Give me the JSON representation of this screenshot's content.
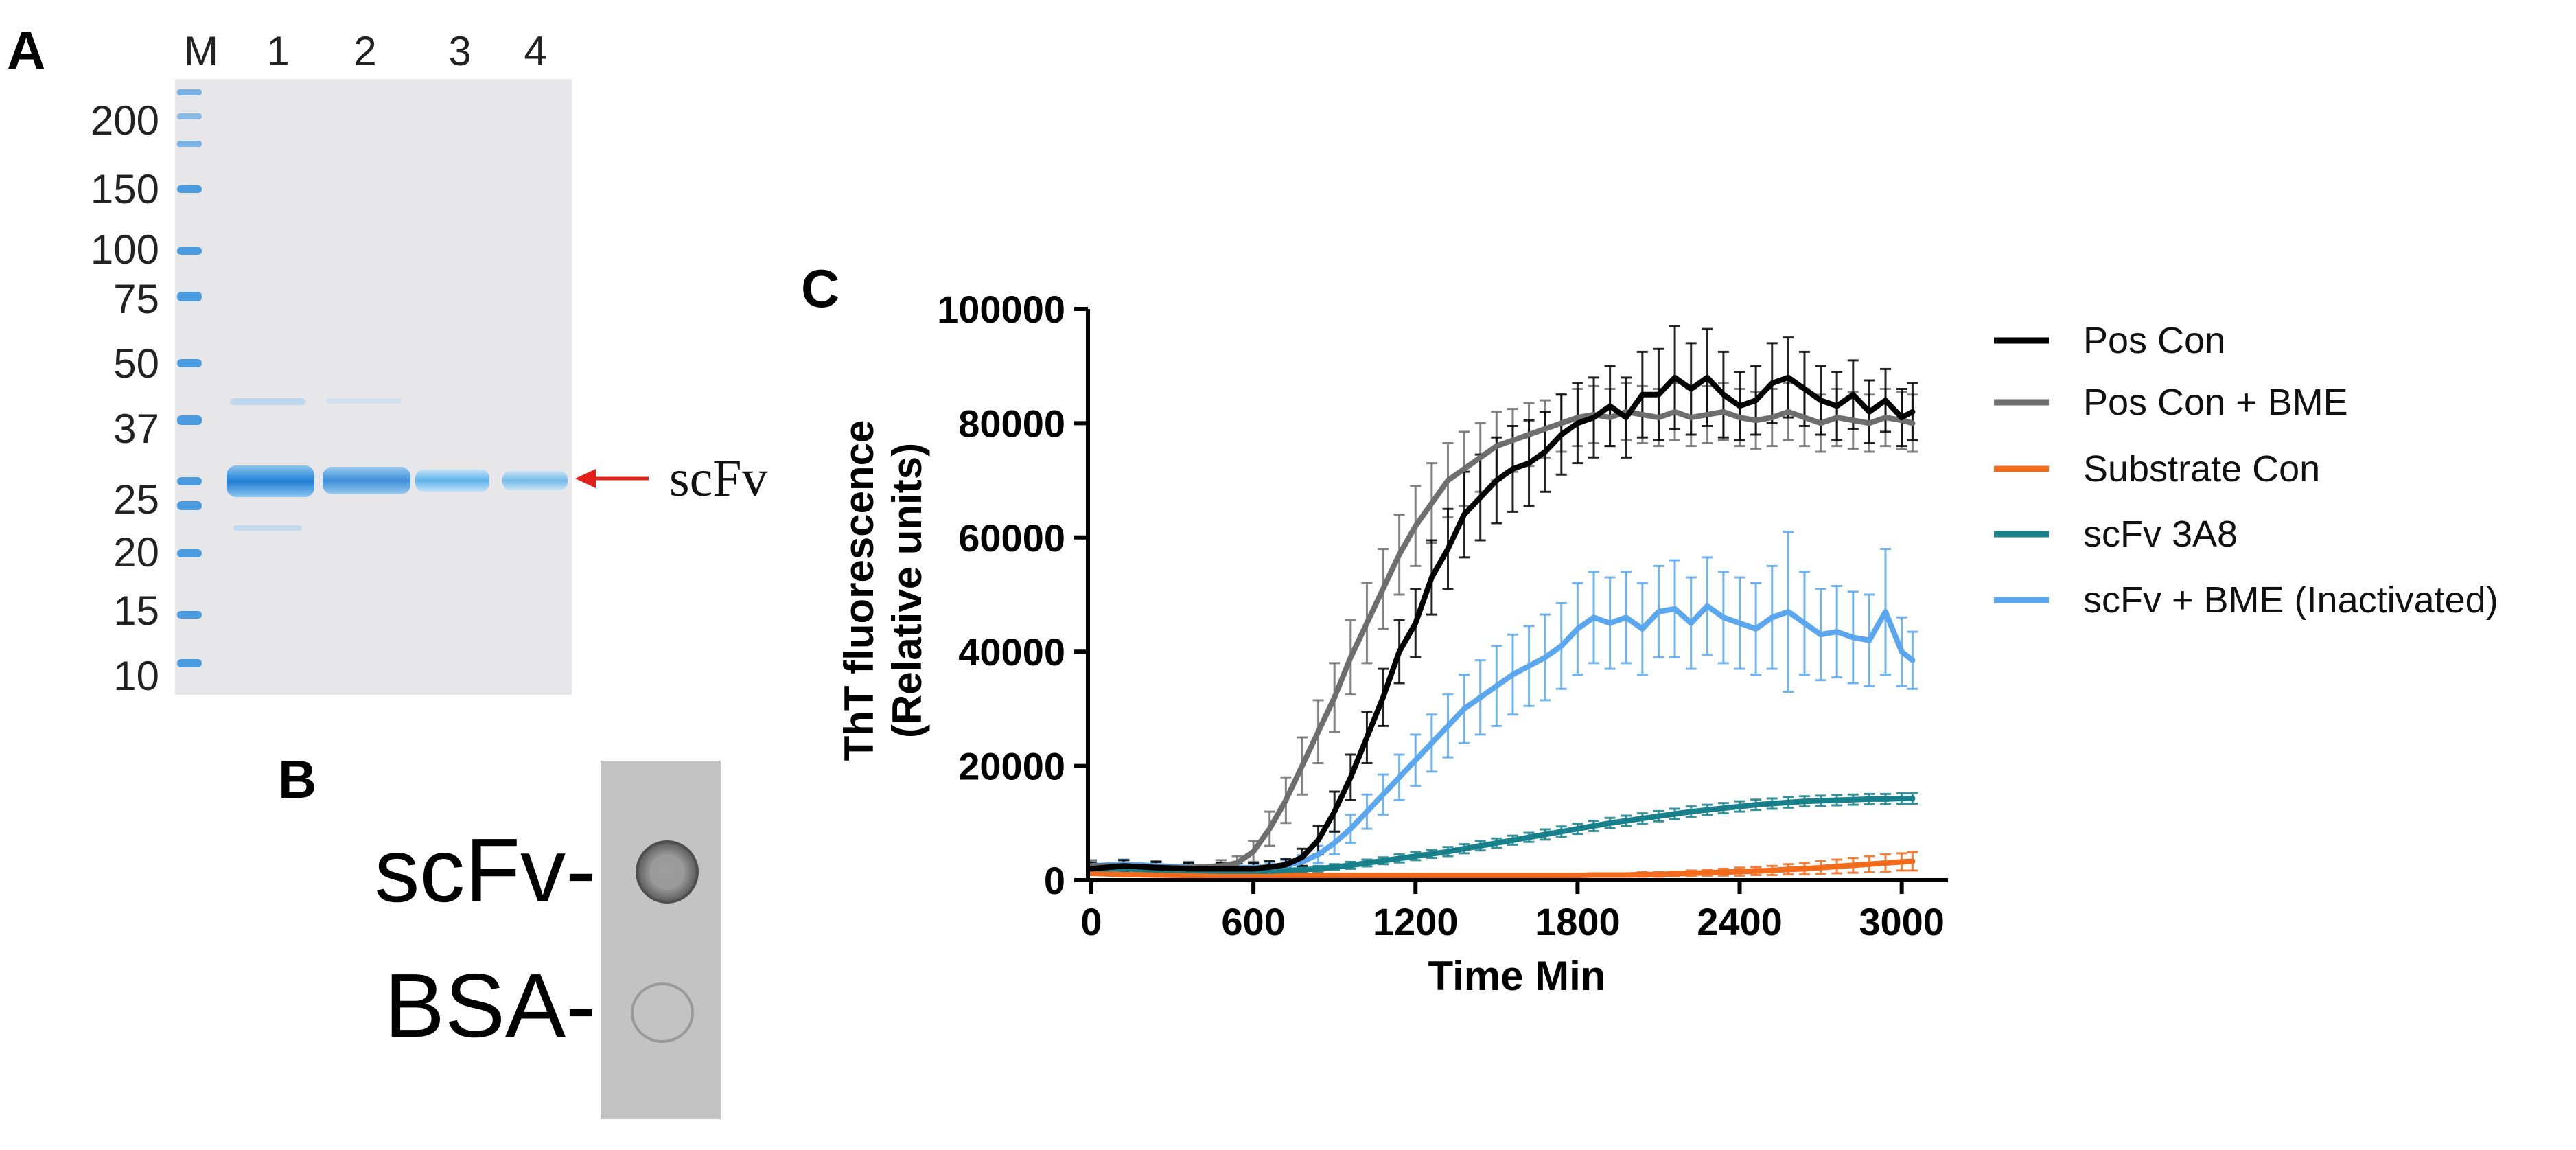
{
  "panel_a": {
    "label": "A",
    "lane_labels": [
      "M",
      "1",
      "2",
      "3",
      "4"
    ],
    "marker_kda": [
      "200",
      "150",
      "100",
      "75",
      "50",
      "37",
      "25",
      "20",
      "15",
      "10"
    ],
    "band_label": "scFv",
    "colors": {
      "band": "#1f7fd6",
      "marker": "#4a9be0",
      "gel": "#e7e7ea",
      "arrow": "#e4201c"
    }
  },
  "panel_b": {
    "label": "B",
    "spots": [
      "scFv-",
      "BSA-"
    ]
  },
  "panel_c": {
    "label": "C"
  },
  "chart_data": {
    "type": "line",
    "title": "",
    "xlabel": "Time Min",
    "ylabel": "ThT fluorescence (Relative units)",
    "ylabel_lines": [
      "ThT fluorescence",
      "(Relative units)"
    ],
    "xlim": [
      0,
      3100
    ],
    "ylim": [
      0,
      100000
    ],
    "xticks": [
      0,
      600,
      1200,
      1800,
      2400,
      3000
    ],
    "yticks": [
      0,
      20000,
      40000,
      60000,
      80000,
      100000
    ],
    "xtick_labels": [
      "0",
      "600",
      "1200",
      "1800",
      "2400",
      "3000"
    ],
    "ytick_labels": [
      "0",
      "20000",
      "40000",
      "60000",
      "80000",
      "100000"
    ],
    "legend_position": "top-right",
    "x": [
      0,
      120,
      240,
      360,
      480,
      540,
      600,
      660,
      720,
      780,
      840,
      900,
      960,
      1020,
      1080,
      1140,
      1200,
      1260,
      1320,
      1380,
      1440,
      1500,
      1560,
      1620,
      1680,
      1740,
      1800,
      1860,
      1920,
      1980,
      2040,
      2100,
      2160,
      2220,
      2280,
      2340,
      2400,
      2460,
      2520,
      2580,
      2640,
      2700,
      2760,
      2820,
      2880,
      2940,
      3000,
      3040
    ],
    "series": [
      {
        "name": "Pos Con",
        "color": "#000000",
        "values": [
          2000,
          2500,
          2200,
          2000,
          2000,
          2000,
          2000,
          2300,
          2700,
          4000,
          7000,
          12000,
          18000,
          25000,
          32000,
          40000,
          45000,
          53000,
          58000,
          64000,
          67000,
          70000,
          72000,
          73000,
          75000,
          78000,
          80000,
          81000,
          83000,
          81000,
          85000,
          85000,
          88000,
          86000,
          88000,
          85000,
          83000,
          84000,
          87000,
          88000,
          86000,
          84000,
          83000,
          85000,
          82000,
          84000,
          81000,
          82000
        ],
        "error": [
          1000,
          1000,
          1000,
          1000,
          1000,
          1000,
          1000,
          1000,
          1000,
          1500,
          2500,
          3500,
          4000,
          4500,
          5000,
          5500,
          6000,
          6500,
          7000,
          7500,
          7500,
          7500,
          7500,
          7500,
          7000,
          7000,
          7000,
          7000,
          7000,
          7000,
          7500,
          8000,
          9000,
          8000,
          8500,
          7500,
          6000,
          6000,
          7000,
          7000,
          6500,
          6000,
          6000,
          6000,
          5500,
          5500,
          5000,
          5000
        ]
      },
      {
        "name": "Pos Con + BME",
        "color": "#6e6e6e",
        "values": [
          2500,
          2500,
          2300,
          2200,
          2500,
          3000,
          5000,
          9000,
          14000,
          20000,
          26000,
          32000,
          39000,
          45000,
          51000,
          57000,
          62000,
          66000,
          70000,
          72000,
          74000,
          76000,
          77000,
          78000,
          79000,
          80000,
          81000,
          81500,
          81000,
          82000,
          81500,
          81000,
          82000,
          81000,
          81500,
          82000,
          81000,
          80500,
          81000,
          82000,
          81000,
          80000,
          81000,
          80500,
          80000,
          81000,
          80500,
          80000
        ],
        "error": [
          1000,
          1000,
          1000,
          1000,
          1000,
          1200,
          1800,
          3000,
          4000,
          5000,
          5500,
          6000,
          6500,
          7000,
          7000,
          7000,
          7000,
          7000,
          6500,
          6500,
          6000,
          6000,
          5500,
          5500,
          5000,
          5000,
          5000,
          5000,
          5000,
          5000,
          5000,
          5000,
          5000,
          5000,
          5000,
          5000,
          5000,
          5000,
          5000,
          5000,
          5000,
          5000,
          5000,
          5000,
          5000,
          5000,
          5000,
          5000
        ]
      },
      {
        "name": "Substrate Con",
        "color": "#f26b1d",
        "values": [
          1200,
          1000,
          900,
          800,
          800,
          800,
          800,
          800,
          800,
          800,
          800,
          800,
          800,
          800,
          800,
          800,
          800,
          800,
          800,
          800,
          800,
          800,
          800,
          800,
          800,
          800,
          800,
          900,
          900,
          900,
          1000,
          1000,
          1100,
          1200,
          1300,
          1400,
          1500,
          1600,
          1700,
          1900,
          2000,
          2200,
          2400,
          2600,
          2800,
          3000,
          3200,
          3300
        ],
        "error": [
          300,
          300,
          300,
          300,
          300,
          300,
          300,
          300,
          300,
          300,
          300,
          300,
          300,
          300,
          300,
          300,
          300,
          300,
          300,
          300,
          300,
          300,
          300,
          300,
          300,
          300,
          300,
          300,
          300,
          300,
          400,
          400,
          400,
          500,
          500,
          600,
          700,
          700,
          800,
          900,
          1000,
          1100,
          1200,
          1300,
          1400,
          1500,
          1500,
          1600
        ]
      },
      {
        "name": "scFv 3A8",
        "color": "#17808a",
        "values": [
          2000,
          2000,
          1800,
          1700,
          1600,
          1600,
          1600,
          1600,
          1700,
          1800,
          2000,
          2300,
          2600,
          3000,
          3400,
          3800,
          4200,
          4600,
          5000,
          5500,
          6000,
          6500,
          7000,
          7500,
          8000,
          8500,
          9000,
          9500,
          10000,
          10400,
          10800,
          11200,
          11600,
          12000,
          12300,
          12600,
          12900,
          13200,
          13400,
          13600,
          13800,
          13900,
          14000,
          14100,
          14200,
          14200,
          14300,
          14300
        ],
        "error": [
          800,
          600,
          500,
          500,
          500,
          500,
          500,
          500,
          500,
          500,
          500,
          500,
          600,
          600,
          600,
          700,
          700,
          700,
          800,
          800,
          800,
          800,
          800,
          800,
          900,
          900,
          900,
          900,
          900,
          900,
          900,
          900,
          900,
          900,
          900,
          900,
          900,
          900,
          900,
          900,
          900,
          900,
          900,
          900,
          900,
          900,
          900,
          900
        ]
      },
      {
        "name": "scFv + BME (Inactivated)",
        "color": "#5aa6ef",
        "values": [
          2500,
          2800,
          2500,
          2300,
          2200,
          2200,
          2200,
          2300,
          2600,
          3200,
          4500,
          6500,
          9000,
          12000,
          15000,
          18000,
          21000,
          24000,
          27000,
          30000,
          32000,
          34000,
          36000,
          37500,
          39000,
          41000,
          44000,
          46000,
          45000,
          46000,
          44000,
          47000,
          47500,
          45000,
          48000,
          46000,
          45000,
          44000,
          46000,
          47000,
          45000,
          43000,
          43500,
          42500,
          42000,
          47000,
          40000,
          38500
        ],
        "error": [
          800,
          800,
          700,
          700,
          700,
          700,
          700,
          800,
          900,
          1200,
          1500,
          2000,
          2500,
          3000,
          3500,
          4000,
          4500,
          5000,
          5500,
          6000,
          6500,
          7000,
          7000,
          7000,
          7500,
          7500,
          8000,
          8000,
          8000,
          8000,
          8000,
          8000,
          8500,
          8000,
          8500,
          8000,
          8000,
          8000,
          9000,
          14000,
          9000,
          8000,
          8000,
          8000,
          8000,
          11000,
          6000,
          5000
        ]
      }
    ]
  }
}
